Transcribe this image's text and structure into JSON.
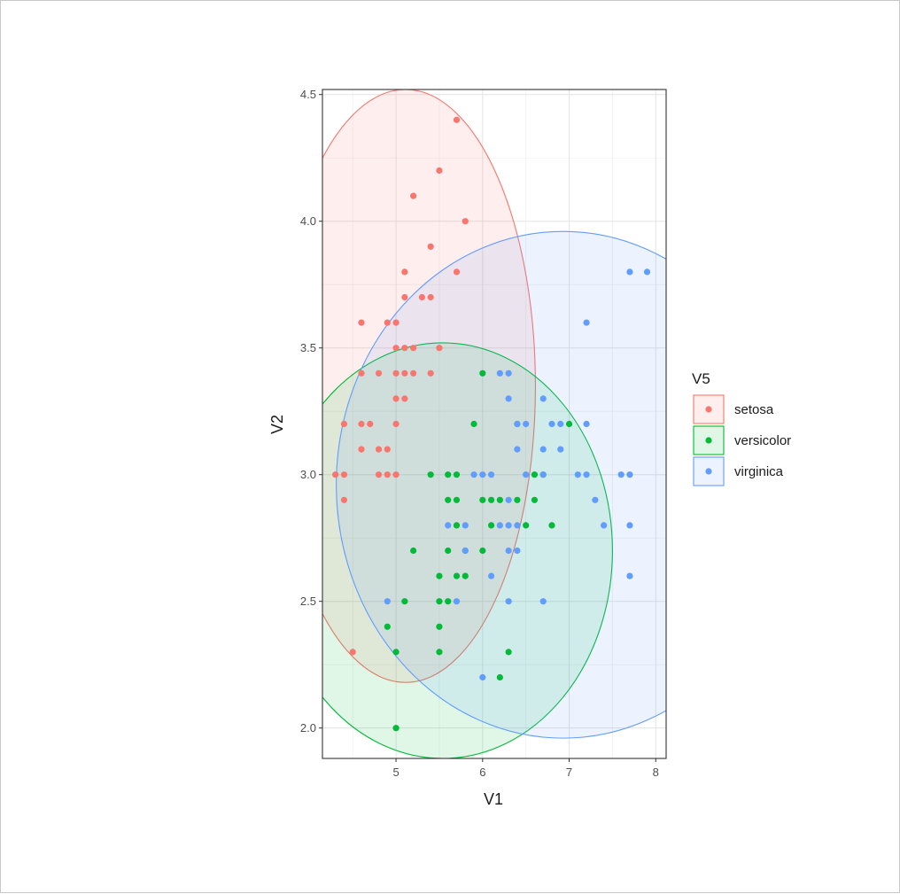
{
  "chart_data": {
    "type": "scatter",
    "xlabel": "V1",
    "ylabel": "V2",
    "xlim": [
      4.15,
      8.12
    ],
    "ylim": [
      1.88,
      4.52
    ],
    "x_ticks": [
      5,
      6,
      7,
      8
    ],
    "y_ticks": [
      2.0,
      2.5,
      3.0,
      3.5,
      4.0,
      4.5
    ],
    "x_tick_labels": [
      "5",
      "6",
      "7",
      "8"
    ],
    "y_tick_labels": [
      "2.0",
      "2.5",
      "3.0",
      "3.5",
      "4.0",
      "4.5"
    ],
    "grid": true,
    "legend": {
      "title": "V5",
      "position": "right"
    },
    "series": [
      {
        "name": "setosa",
        "color": "#F8766D",
        "ellipse": {
          "cx": 5.11,
          "cy": 3.35,
          "rx": 1.5,
          "ry": 1.17
        },
        "points": [
          [
            5.7,
            4.4
          ],
          [
            5.5,
            4.2
          ],
          [
            5.2,
            4.1
          ],
          [
            5.8,
            4.0
          ],
          [
            5.4,
            3.9
          ],
          [
            5.1,
            3.8
          ],
          [
            5.7,
            3.8
          ],
          [
            5.1,
            3.7
          ],
          [
            5.3,
            3.7
          ],
          [
            5.4,
            3.7
          ],
          [
            4.6,
            3.6
          ],
          [
            4.9,
            3.6
          ],
          [
            5.0,
            3.6
          ],
          [
            5.0,
            3.5
          ],
          [
            5.1,
            3.5
          ],
          [
            5.2,
            3.5
          ],
          [
            5.5,
            3.5
          ],
          [
            4.6,
            3.4
          ],
          [
            4.8,
            3.4
          ],
          [
            5.0,
            3.4
          ],
          [
            5.1,
            3.4
          ],
          [
            5.2,
            3.4
          ],
          [
            5.4,
            3.4
          ],
          [
            5.0,
            3.3
          ],
          [
            5.1,
            3.3
          ],
          [
            4.4,
            3.2
          ],
          [
            4.6,
            3.2
          ],
          [
            4.7,
            3.2
          ],
          [
            5.0,
            3.2
          ],
          [
            4.6,
            3.1
          ],
          [
            4.8,
            3.1
          ],
          [
            4.9,
            3.1
          ],
          [
            4.3,
            3.0
          ],
          [
            4.4,
            3.0
          ],
          [
            4.8,
            3.0
          ],
          [
            4.9,
            3.0
          ],
          [
            5.0,
            3.0
          ],
          [
            4.4,
            2.9
          ],
          [
            4.5,
            2.3
          ]
        ]
      },
      {
        "name": "versicolor",
        "color": "#00BA38",
        "ellipse": {
          "cx": 5.54,
          "cy": 2.7,
          "rx": 1.96,
          "ry": 0.82
        },
        "points": [
          [
            6.0,
            3.4
          ],
          [
            5.9,
            3.2
          ],
          [
            7.0,
            3.2
          ],
          [
            6.4,
            3.2
          ],
          [
            5.4,
            3.0
          ],
          [
            5.6,
            3.0
          ],
          [
            5.7,
            3.0
          ],
          [
            6.6,
            3.0
          ],
          [
            6.7,
            3.0
          ],
          [
            5.6,
            2.9
          ],
          [
            5.7,
            2.9
          ],
          [
            6.0,
            2.9
          ],
          [
            6.1,
            2.9
          ],
          [
            6.2,
            2.9
          ],
          [
            6.4,
            2.9
          ],
          [
            6.6,
            2.9
          ],
          [
            5.7,
            2.8
          ],
          [
            6.1,
            2.8
          ],
          [
            6.5,
            2.8
          ],
          [
            6.8,
            2.8
          ],
          [
            5.2,
            2.7
          ],
          [
            5.6,
            2.7
          ],
          [
            5.8,
            2.7
          ],
          [
            6.0,
            2.7
          ],
          [
            5.5,
            2.6
          ],
          [
            5.7,
            2.6
          ],
          [
            5.8,
            2.6
          ],
          [
            5.1,
            2.5
          ],
          [
            5.5,
            2.5
          ],
          [
            5.6,
            2.5
          ],
          [
            4.9,
            2.4
          ],
          [
            5.5,
            2.4
          ],
          [
            5.0,
            2.3
          ],
          [
            5.5,
            2.3
          ],
          [
            6.3,
            2.3
          ],
          [
            6.2,
            2.2
          ],
          [
            5.0,
            2.0
          ]
        ]
      },
      {
        "name": "virginica",
        "color": "#619CFF",
        "ellipse": {
          "cx": 6.93,
          "cy": 2.96,
          "rx": 2.62,
          "ry": 1.0
        },
        "points": [
          [
            7.7,
            3.8
          ],
          [
            7.9,
            3.8
          ],
          [
            7.2,
            3.6
          ],
          [
            6.2,
            3.4
          ],
          [
            6.3,
            3.4
          ],
          [
            6.3,
            3.3
          ],
          [
            6.7,
            3.3
          ],
          [
            6.4,
            3.2
          ],
          [
            6.5,
            3.2
          ],
          [
            6.8,
            3.2
          ],
          [
            6.9,
            3.2
          ],
          [
            7.2,
            3.2
          ],
          [
            6.4,
            3.1
          ],
          [
            6.7,
            3.1
          ],
          [
            6.9,
            3.1
          ],
          [
            5.9,
            3.0
          ],
          [
            6.0,
            3.0
          ],
          [
            6.1,
            3.0
          ],
          [
            6.5,
            3.0
          ],
          [
            6.7,
            3.0
          ],
          [
            7.1,
            3.0
          ],
          [
            7.2,
            3.0
          ],
          [
            7.6,
            3.0
          ],
          [
            7.7,
            3.0
          ],
          [
            6.3,
            2.9
          ],
          [
            7.3,
            2.9
          ],
          [
            5.6,
            2.8
          ],
          [
            5.8,
            2.8
          ],
          [
            6.2,
            2.8
          ],
          [
            6.3,
            2.8
          ],
          [
            6.4,
            2.8
          ],
          [
            7.4,
            2.8
          ],
          [
            7.7,
            2.8
          ],
          [
            5.8,
            2.7
          ],
          [
            6.3,
            2.7
          ],
          [
            6.4,
            2.7
          ],
          [
            6.1,
            2.6
          ],
          [
            7.7,
            2.6
          ],
          [
            4.9,
            2.5
          ],
          [
            5.7,
            2.5
          ],
          [
            6.3,
            2.5
          ],
          [
            6.7,
            2.5
          ],
          [
            6.0,
            2.2
          ]
        ]
      }
    ]
  }
}
